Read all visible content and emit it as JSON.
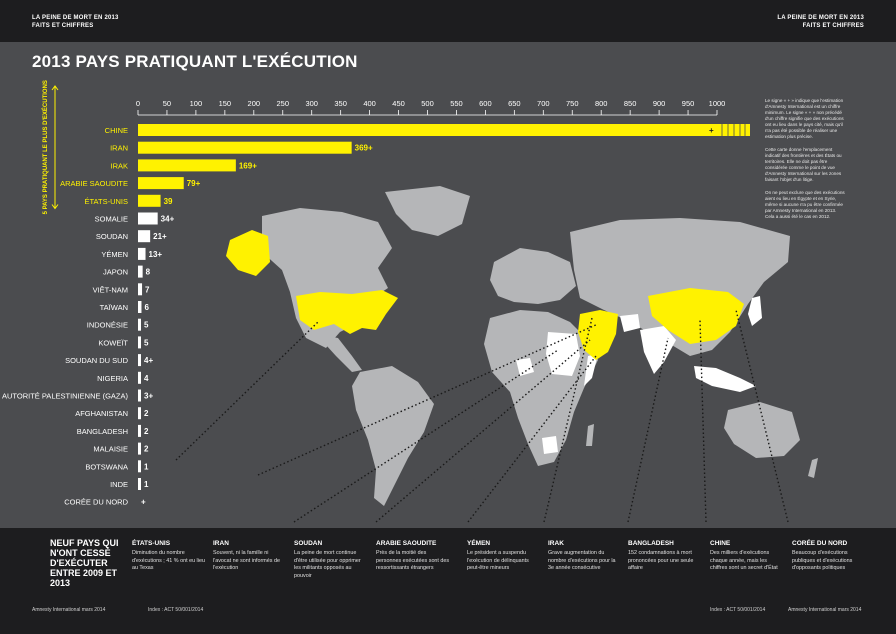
{
  "header": {
    "left_line1": "LA PEINE DE MORT EN 2013",
    "left_line2": "FAITS ET CHIFFRES",
    "right_line1": "LA PEINE DE MORT EN 2013",
    "right_line2": "FAITS ET CHIFFRES"
  },
  "title": "2013 PAYS PRATIQUANT L'EXÉCUTION",
  "side_label": "5 PAYS PRATIQUANT LE PLUS D'EXÉCUTIONS",
  "chart_data": {
    "type": "bar",
    "orientation": "horizontal",
    "title": "2013 PAYS PRATIQUANT L'EXÉCUTION",
    "xlim": [
      0,
      1000
    ],
    "ticks": [
      0,
      50,
      100,
      150,
      200,
      250,
      300,
      350,
      400,
      450,
      500,
      550,
      600,
      650,
      700,
      750,
      800,
      850,
      900,
      950,
      1000
    ],
    "categories": [
      "CHINE",
      "IRAN",
      "IRAK",
      "ARABIE SAOUDITE",
      "ÉTATS-UNIS",
      "SOMALIE",
      "SOUDAN",
      "YÉMEN",
      "JAPON",
      "VIÊT-NAM",
      "TAÏWAN",
      "INDONÉSIE",
      "KOWEÏT",
      "SOUDAN DU SUD",
      "NIGERIA",
      "AUTORITÉ PALESTINIENNE (GAZA)",
      "AFGHANISTAN",
      "BANGLADESH",
      "MALAISIE",
      "BOTSWANA",
      "INDE",
      "CORÉE DU NORD"
    ],
    "values": [
      1000,
      369,
      169,
      79,
      39,
      34,
      21,
      13,
      8,
      7,
      6,
      5,
      5,
      4,
      4,
      3,
      2,
      2,
      2,
      1,
      1,
      0
    ],
    "labels": [
      "+",
      "369+",
      "169+",
      "79+",
      "39",
      "34+",
      "21+",
      "13+",
      "8",
      "7",
      "6",
      "5",
      "5",
      "4+",
      "4",
      "3+",
      "2",
      "2",
      "2",
      "1",
      "1",
      "+"
    ],
    "top5_count": 5,
    "colors": {
      "top5": "#fff200",
      "others": "#ffffff",
      "map_land": "#b5b6b8",
      "map_highlight_yellow": "#fff200",
      "map_highlight_white": "#ffffff"
    }
  },
  "notes": [
    "Le signe « + » indique que l'estimation d'Amnesty International est un chiffre minimum. Le signe « + » non précédé d'un chiffre signifie que des exécutions ont eu lieu dans le pays cité, mais qu'il n'a pas été possible de réaliser une estimation plus précise.",
    "Cette carte donne l'emplacement indicatif des frontières et des États ou territoires. Elle ne doit pas être considérée comme le point de vue d'Amnesty International sur les zones faisant l'objet d'un litige.",
    "On ne peut exclure que des exécutions aient eu lieu en Égypte et en Syrie, même si aucune n'a pu être confirmée par Amnesty International en 2013. Cela a aussi été le cas en 2012."
  ],
  "bottom": {
    "title": "NEUF PAYS QUI N'ONT CESSÉ D'EXÉCUTER ENTRE 2009 ET 2013",
    "columns": [
      {
        "country": "ÉTATS-UNIS",
        "text": "Diminution du nombre d'exécutions ; 41 % ont eu lieu au Texas"
      },
      {
        "country": "IRAN",
        "text": "Souvent, ni la famille ni l'avocat ne sont informés de l'exécution"
      },
      {
        "country": "SOUDAN",
        "text": "La peine de mort continue d'être utilisée pour opprimer les militants opposés au pouvoir"
      },
      {
        "country": "ARABIE SAOUDITE",
        "text": "Près de la moitié des personnes exécutées sont des ressortissants étrangers"
      },
      {
        "country": "YÉMEN",
        "text": "Le président a suspendu l'exécution de délinquants peut-être mineurs"
      },
      {
        "country": "IRAK",
        "text": "Grave augmentation du nombre d'exécutions pour la 3e année consécutive"
      },
      {
        "country": "BANGLADESH",
        "text": "152 condamnations à mort prononcées pour une seule affaire"
      },
      {
        "country": "CHINE",
        "text": "Des milliers d'exécutions chaque année, mais les chiffres sont un secret d'État"
      },
      {
        "country": "CORÉE DU NORD",
        "text": "Beaucoup d'exécutions publiques et d'exécutions d'opposants politiques"
      }
    ]
  },
  "footer": {
    "left_org": "Amnesty International mars  2014",
    "left_index": "Index : ACT 50/001/2014",
    "right_index": "Index : ACT 50/001/2014",
    "right_org": "Amnesty International mars  2014"
  }
}
